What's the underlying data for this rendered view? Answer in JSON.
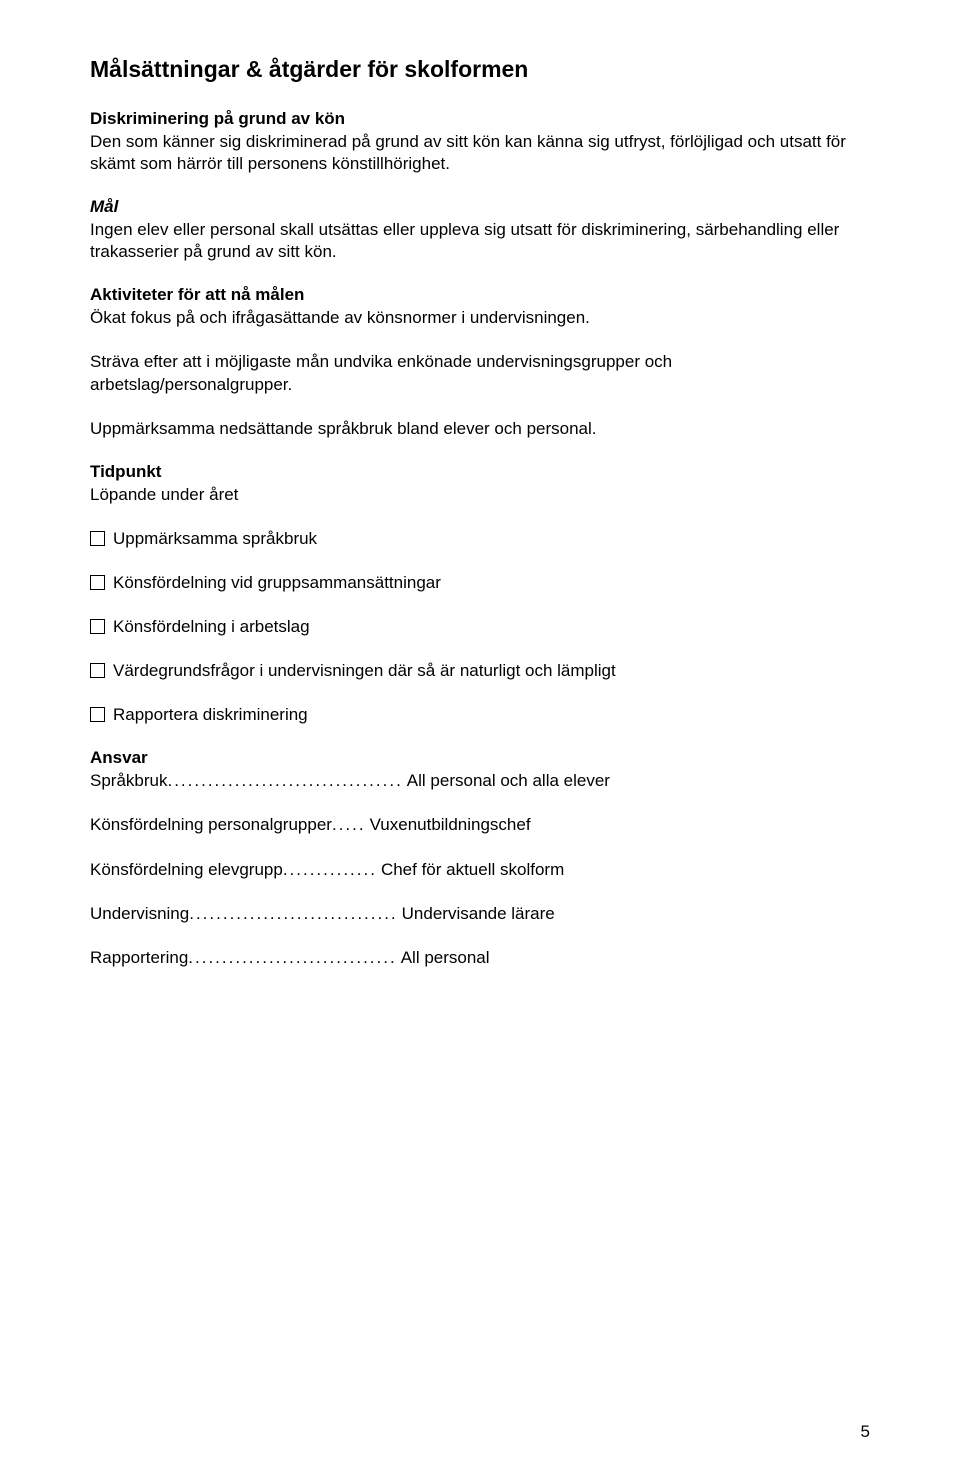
{
  "title": "Målsättningar & åtgärder för skolformen",
  "s1": {
    "heading": "Diskriminering på grund av kön",
    "body": "Den som känner sig diskriminerad på grund av sitt kön kan känna sig utfryst, förlöjligad och utsatt för skämt som härrör till personens könstillhörighet."
  },
  "s2": {
    "heading": "Mål",
    "body": "Ingen elev eller personal skall utsättas eller uppleva sig utsatt för diskriminering, särbehandling eller trakasserier på grund av sitt kön."
  },
  "s3": {
    "heading": "Aktiviteter för att nå målen",
    "p1": "Ökat fokus på och ifrågasättande av könsnormer i undervisningen.",
    "p2": "Sträva efter att i möjligaste mån undvika enkönade undervisningsgrupper och arbetslag/personalgrupper.",
    "p3": "Uppmärksamma nedsättande språkbruk bland elever och personal."
  },
  "s4": {
    "heading": "Tidpunkt",
    "body": "Löpande under året"
  },
  "checks": [
    "Uppmärksamma språkbruk",
    "Könsfördelning vid gruppsammansättningar",
    "Könsfördelning i arbetslag",
    "Värdegrundsfrågor i undervisningen där så är naturligt och lämpligt",
    "Rapportera diskriminering"
  ],
  "s5": {
    "heading": "Ansvar"
  },
  "kv": [
    {
      "key": "Språkbruk",
      "dots": "...................................",
      "val": "All personal och alla elever"
    },
    {
      "key": "Könsfördelning personalgrupper",
      "dots": ".....",
      "val": "Vuxenutbildningschef"
    },
    {
      "key": "Könsfördelning elevgrupp",
      "dots": "..............",
      "val": "Chef för aktuell skolform"
    },
    {
      "key": "Undervisning",
      "dots": "...............................",
      "val": "Undervisande lärare"
    },
    {
      "key": "Rapportering",
      "dots": "...............................",
      "val": "All personal"
    }
  ],
  "pageNumber": "5"
}
